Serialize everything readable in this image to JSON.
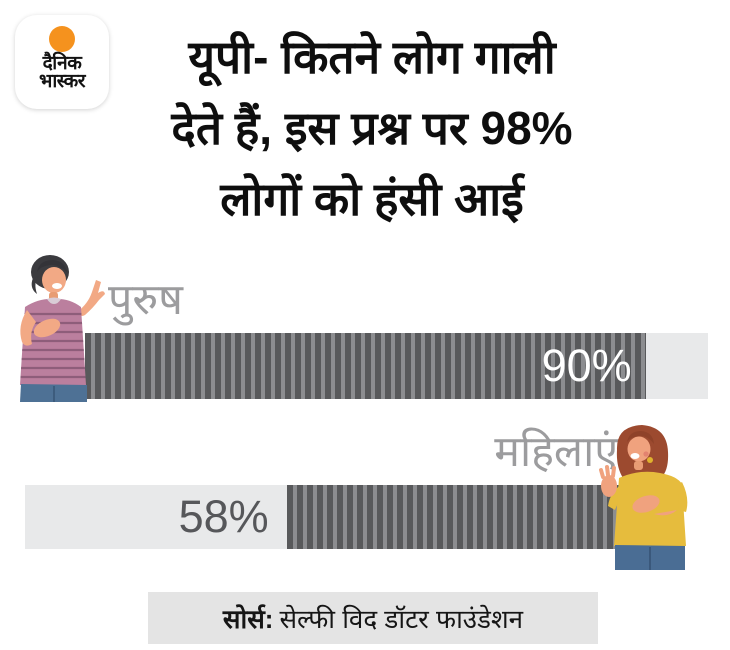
{
  "logo": {
    "line1": "दैनिक",
    "line2": "भास्कर"
  },
  "title": {
    "line1": "यूपी- कितने लोग गाली",
    "line2": "देते हैं, इस प्रश्न पर 98%",
    "line3": "लोगों को हंसी आई"
  },
  "chart_data": {
    "type": "bar",
    "orientation": "horizontal",
    "title": "यूपी- कितने लोग गाली देते हैं, इस प्रश्न पर 98% लोगों को हंसी आई",
    "categories": [
      "पुरुष",
      "महिलाएं"
    ],
    "values": [
      90,
      58
    ],
    "value_labels": [
      "90%",
      "58%"
    ],
    "xlim": [
      0,
      100
    ],
    "grid": false,
    "legend_position": "none",
    "bar_direction": [
      "left-to-right",
      "right-to-left"
    ],
    "source": "सोर्स: सेल्फी विद डॉटर फाउंडेशन"
  },
  "source": {
    "prefix": "सोर्स:",
    "text": "सेल्फी विद डॉटर फाउंडेशन"
  },
  "colors": {
    "stripe_dark": "#58595b",
    "stripe_light": "#8c8d90",
    "track": "#e8e9ea",
    "category_label": "#9c9c9e",
    "value_on_fill": "#ffffff",
    "value_on_track": "#56575a",
    "logo_orange": "#f5921e",
    "source_bg": "#e4e4e4"
  },
  "icons": {
    "logo_dot": "orange-sun-dot",
    "man_illustration": "laughing-man-striped-shirt",
    "woman_illustration": "laughing-woman-yellow-shirt"
  }
}
